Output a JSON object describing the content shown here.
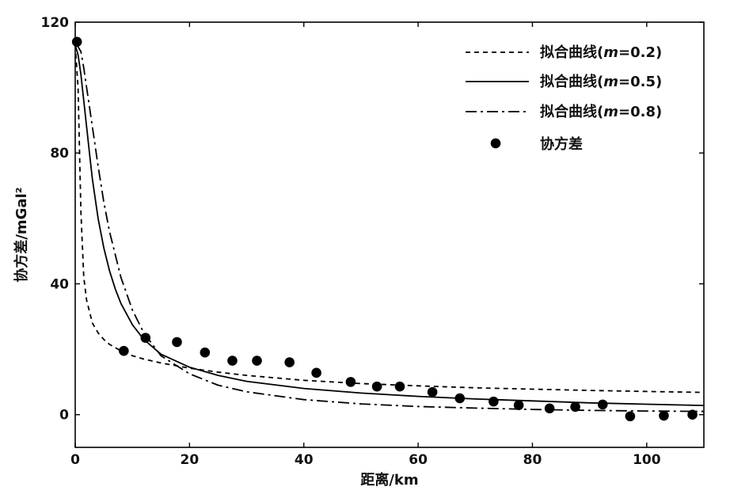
{
  "chart_data": {
    "type": "line",
    "title": "",
    "xlabel": "距离/km",
    "ylabel": "协方差/mGal²",
    "xlim": [
      0,
      110
    ],
    "ylim": [
      -10,
      120
    ],
    "x_ticks": [
      "0",
      "20",
      "40",
      "60",
      "80",
      "100"
    ],
    "y_ticks": [
      "0",
      "40",
      "80",
      "120"
    ],
    "grid": false,
    "legend_position": "top-right",
    "series": [
      {
        "name": "拟合曲线(m=0.2)",
        "legend_prefix": "拟合曲线(",
        "legend_italic": "m",
        "legend_suffix": "=0.2)",
        "style": "dashed",
        "x": [
          0,
          0.5,
          1,
          1.5,
          2,
          3,
          4,
          5,
          6,
          8,
          10,
          12,
          15,
          20,
          25,
          30,
          40,
          50,
          60,
          70,
          80,
          90,
          100,
          110
        ],
        "y": [
          113,
          100,
          62,
          42,
          35,
          28,
          25,
          23,
          21.5,
          19.5,
          18,
          17,
          15.8,
          14.2,
          13,
          12,
          10.5,
          9.5,
          8.8,
          8.2,
          7.8,
          7.4,
          7.1,
          6.8
        ]
      },
      {
        "name": "拟合曲线(m=0.5)",
        "legend_prefix": "拟合曲线(",
        "legend_italic": "m",
        "legend_suffix": "=0.5)",
        "style": "solid",
        "x": [
          0,
          0.5,
          1,
          1.5,
          2,
          2.5,
          3,
          4,
          5,
          6,
          7,
          8,
          10,
          12,
          15,
          20,
          25,
          30,
          40,
          50,
          60,
          70,
          80,
          90,
          100,
          110
        ],
        "y": [
          113,
          110,
          104,
          96,
          88,
          80,
          72,
          60,
          51,
          44,
          38.5,
          34,
          27.5,
          23,
          18.5,
          14.5,
          12,
          10.2,
          8,
          6.6,
          5.6,
          4.8,
          4.2,
          3.6,
          3.2,
          2.8
        ]
      },
      {
        "name": "拟合曲线(m=0.8)",
        "legend_prefix": "拟合曲线(",
        "legend_italic": "m",
        "legend_suffix": "=0.8)",
        "style": "dashdot",
        "x": [
          0,
          0.5,
          1,
          1.5,
          2,
          3,
          4,
          5,
          6,
          8,
          10,
          12,
          15,
          20,
          25,
          30,
          40,
          50,
          60,
          70,
          80,
          90,
          100,
          110
        ],
        "y": [
          113,
          112.5,
          111,
          106,
          100,
          88,
          76,
          65,
          56,
          42,
          32,
          25,
          18,
          12.5,
          9,
          7,
          4.6,
          3.3,
          2.5,
          2,
          1.6,
          1.3,
          1.1,
          1
        ]
      },
      {
        "name": "协方差",
        "style": "markers",
        "x": [
          0.3,
          8.5,
          12.3,
          17.8,
          22.7,
          27.5,
          31.8,
          37.5,
          42.2,
          48.2,
          52.8,
          56.8,
          62.5,
          67.3,
          73.2,
          77.6,
          83,
          87.5,
          92.3,
          97.1,
          103,
          108
        ],
        "y": [
          114,
          19.5,
          23.5,
          22.2,
          19,
          16.5,
          16.5,
          16,
          12.8,
          10,
          8.6,
          8.6,
          6.9,
          5,
          4,
          2.9,
          1.9,
          2.4,
          3.1,
          -0.5,
          -0.3,
          0
        ]
      }
    ]
  }
}
